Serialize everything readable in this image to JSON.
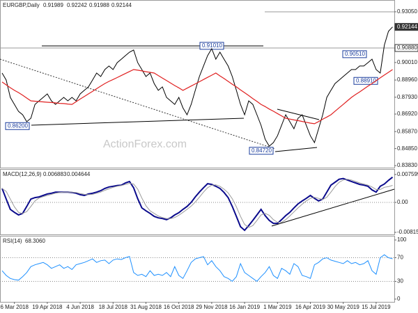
{
  "chart_data": [
    {
      "type": "line",
      "title": "EURGBP,Daily",
      "header_values": [
        0.91989,
        0.92242,
        0.91988,
        0.92144
      ],
      "watermark": "ActionForex.com",
      "ylim": [
        0.8371,
        0.9359
      ],
      "yticks": [
        {
          "value": 0.9305,
          "label": "0.93050"
        },
        {
          "value": 0.92144,
          "label": "0.92144",
          "boxed": true
        },
        {
          "value": 0.9088,
          "label": "0.90880",
          "boxed": true
        },
        {
          "value": 0.9001,
          "label": "0.90010"
        },
        {
          "value": 0.8896,
          "label": "0.88960"
        },
        {
          "value": 0.8793,
          "label": "0.87930"
        },
        {
          "value": 0.8692,
          "label": "0.86920"
        },
        {
          "value": 0.8587,
          "label": "0.85870"
        },
        {
          "value": 0.8485,
          "label": "0.84850"
        },
        {
          "value": 0.8383,
          "label": "0.83830"
        }
      ],
      "annotations": [
        {
          "value": 0.9101,
          "label": "0.91010"
        },
        {
          "value": 0.9051,
          "label": "0.90510"
        },
        {
          "value": 0.8891,
          "label": "0.88910"
        },
        {
          "value": 0.862,
          "label": "0.86200"
        },
        {
          "value": 0.8472,
          "label": "0.84720"
        }
      ],
      "series": [
        {
          "color": "#000000",
          "values": [
            0.8938,
            0.8896,
            0.8792,
            0.875,
            0.8708,
            0.8688,
            0.8646,
            0.8667,
            0.875,
            0.8771,
            0.8792,
            0.8813,
            0.8771,
            0.875,
            0.8771,
            0.8792,
            0.8771,
            0.8792,
            0.8771,
            0.8813,
            0.8834,
            0.8855,
            0.8896,
            0.8938,
            0.8917,
            0.8959,
            0.898,
            0.8959,
            0.9,
            0.9021,
            0.9042,
            0.9063,
            0.9076,
            0.9,
            0.8959,
            0.8917,
            0.8938,
            0.8875,
            0.8834,
            0.8855,
            0.8792,
            0.8771,
            0.875,
            0.8792,
            0.8729,
            0.8688,
            0.875,
            0.8834,
            0.8917,
            0.898,
            0.9042,
            0.9084,
            0.9021,
            0.9063,
            0.9021,
            0.898,
            0.8917,
            0.8834,
            0.875,
            0.8688,
            0.8771,
            0.875,
            0.8688,
            0.8625,
            0.8541,
            0.85,
            0.8521,
            0.8562,
            0.8625,
            0.8688,
            0.8646,
            0.8604,
            0.8667,
            0.8688,
            0.8625,
            0.8562,
            0.8521,
            0.8604,
            0.8688,
            0.8792,
            0.8834,
            0.8875,
            0.8896,
            0.8917,
            0.8938,
            0.8959,
            0.8959,
            0.898,
            0.898,
            0.9,
            0.9021,
            0.8959,
            0.8938,
            0.9105,
            0.9188,
            0.92144
          ]
        },
        {
          "color": "#e02020",
          "values": [
            0.8884,
            0.8867,
            0.885,
            0.8834,
            0.8821,
            0.8805,
            0.8788,
            0.8771,
            0.8769,
            0.8767,
            0.8765,
            0.8763,
            0.8761,
            0.8759,
            0.8756,
            0.8755,
            0.8752,
            0.875,
            0.8766,
            0.8782,
            0.8797,
            0.8813,
            0.8828,
            0.8844,
            0.886,
            0.8875,
            0.8888,
            0.8899,
            0.8911,
            0.8923,
            0.8935,
            0.8947,
            0.8959,
            0.8955,
            0.8951,
            0.8946,
            0.8942,
            0.8938,
            0.8923,
            0.8908,
            0.8893,
            0.8878,
            0.8863,
            0.8849,
            0.8834,
            0.8847,
            0.886,
            0.8873,
            0.8886,
            0.8899,
            0.8912,
            0.8925,
            0.8938,
            0.8921,
            0.8905,
            0.8888,
            0.8871,
            0.8855,
            0.8837,
            0.882,
            0.8803,
            0.8785,
            0.8768,
            0.875,
            0.8737,
            0.8722,
            0.8709,
            0.8695,
            0.8681,
            0.8667,
            0.8662,
            0.8657,
            0.8653,
            0.8648,
            0.8643,
            0.8638,
            0.8634,
            0.8647,
            0.8661,
            0.8674,
            0.8688,
            0.8709,
            0.873,
            0.875,
            0.8771,
            0.8792,
            0.8809,
            0.8825,
            0.8842,
            0.8859,
            0.8875,
            0.8892,
            0.8909,
            0.8926,
            0.8942,
            0.8959
          ]
        }
      ]
    },
    {
      "type": "line",
      "title": "MACD(12,26,9)",
      "ylim": [
        -0.0089,
        0.0089
      ],
      "yticks": [
        0.007599,
        {
          "value": 0,
          "label": "0.00"
        },
        -0.00815
      ],
      "series": [
        {
          "color": "#0a0a8c",
          "values": [
            0.0038,
            0.0009,
            -0.0019,
            -0.0027,
            -0.0034,
            -0.003,
            -0.0011,
            0.0009,
            0.0013,
            0.0015,
            0.0019,
            0.0023,
            0.0025,
            0.0028,
            0.0028,
            0.0028,
            0.0028,
            0.0027,
            0.0025,
            0.0021,
            0.0019,
            0.0023,
            0.0025,
            0.0028,
            0.0032,
            0.0038,
            0.0042,
            0.0044,
            0.0046,
            0.0047,
            0.0053,
            0.0057,
            0.004,
            0.001,
            -0.0015,
            -0.0023,
            -0.003,
            -0.0038,
            -0.0042,
            -0.0044,
            -0.0047,
            -0.0042,
            -0.0034,
            -0.0028,
            -0.0019,
            -0.0011,
            0,
            0.0015,
            0.0028,
            0.004,
            0.0051,
            0.0049,
            0.0044,
            0.0038,
            0.0027,
            0.0013,
            -0.0011,
            -0.0038,
            -0.0066,
            -0.0076,
            -0.0063,
            -0.0049,
            -0.0034,
            -0.0019,
            -0.0036,
            -0.0049,
            -0.0057,
            -0.0057,
            -0.0047,
            -0.0036,
            -0.0027,
            -0.0015,
            -0.0004,
            0.0004,
            0.0011,
            0.0019,
            0.0011,
            0.0004,
            0.0009,
            0.0028,
            0.0047,
            0.0055,
            0.0063,
            0.0065,
            0.0061,
            0.0057,
            0.0053,
            0.0049,
            0.0047,
            0.0044,
            0.0034,
            0.0028,
            0.0044,
            0.005,
            0.006,
            0.006883
          ]
        },
        {
          "color": "#9a9a9a",
          "values": [
            0.0038,
            0.003,
            0.0009,
            -0.0012,
            -0.0027,
            -0.003,
            -0.0025,
            -0.0011,
            0.0004,
            0.0012,
            0.0016,
            0.0019,
            0.0022,
            0.0025,
            0.0027,
            0.0028,
            0.0028,
            0.0028,
            0.0027,
            0.0024,
            0.0022,
            0.0021,
            0.0022,
            0.0025,
            0.0028,
            0.0033,
            0.0037,
            0.0041,
            0.0044,
            0.0046,
            0.0049,
            0.0052,
            0.005,
            0.0036,
            0.0012,
            -0.0009,
            -0.0023,
            -0.003,
            -0.0037,
            -0.0041,
            -0.0044,
            -0.0044,
            -0.0041,
            -0.0035,
            -0.0027,
            -0.0019,
            -0.001,
            0.0001,
            0.0014,
            0.0028,
            0.004,
            0.0047,
            0.0048,
            0.0044,
            0.0036,
            0.0026,
            0.001,
            -0.0012,
            -0.0038,
            -0.006,
            -0.0068,
            -0.0063,
            -0.0049,
            -0.0034,
            -0.003,
            -0.0035,
            -0.0047,
            -0.0054,
            -0.0054,
            -0.0047,
            -0.0037,
            -0.0026,
            -0.0015,
            -0.0005,
            0.0004,
            0.0011,
            0.0014,
            0.0011,
            0.0008,
            0.0014,
            0.0028,
            0.0043,
            0.0055,
            0.0061,
            0.0063,
            0.0061,
            0.0057,
            0.0053,
            0.005,
            0.0047,
            0.0042,
            0.0035,
            0.0035,
            0.0041,
            0.0043,
            0.004644
          ]
        }
      ]
    },
    {
      "type": "line",
      "title": "RSI(14)",
      "current_label": "68.3060",
      "ylim": [
        -4.7,
        105.9
      ],
      "yticks": [
        100,
        70,
        30,
        0
      ],
      "categories": [
        null,
        null,
        null,
        "6 Mar 2018",
        null,
        null,
        null,
        null,
        null,
        null,
        null,
        "19 Apr 2018",
        null,
        null,
        null,
        null,
        null,
        null,
        null,
        "4 Jun 2018",
        null,
        null,
        null,
        null,
        null,
        null,
        null,
        "18 Jul 2018",
        null,
        null,
        null,
        null,
        null,
        null,
        null,
        "31 Aug 2018",
        null,
        null,
        null,
        null,
        null,
        null,
        null,
        "16 Oct 2018",
        null,
        null,
        null,
        null,
        null,
        null,
        null,
        "29 Nov 2018",
        null,
        null,
        null,
        null,
        null,
        null,
        null,
        "16 Jan 2019",
        null,
        null,
        null,
        null,
        null,
        null,
        null,
        "1 Mar 2019",
        null,
        null,
        null,
        null,
        null,
        null,
        null,
        "16 Apr 2019",
        null,
        null,
        null,
        null,
        null,
        null,
        null,
        "30 May 2019",
        null,
        null,
        null,
        null,
        null,
        null,
        null,
        "15 Jul 2019",
        null,
        null,
        null,
        null
      ],
      "series": [
        {
          "color": "#1e90ff",
          "values": [
            48,
            40,
            35,
            33,
            32,
            38,
            45,
            55,
            58,
            60,
            62,
            58,
            52,
            55,
            58,
            52,
            55,
            50,
            58,
            60,
            62,
            65,
            68,
            62,
            65,
            66,
            60,
            66,
            68,
            67,
            70,
            72,
            45,
            40,
            42,
            38,
            48,
            40,
            42,
            40,
            45,
            38,
            55,
            40,
            35,
            48,
            62,
            68,
            70,
            72,
            58,
            65,
            55,
            48,
            38,
            35,
            30,
            38,
            60,
            45,
            40,
            35,
            30,
            38,
            45,
            55,
            40,
            35,
            52,
            48,
            42,
            60,
            55,
            40,
            38,
            35,
            58,
            62,
            68,
            70,
            66,
            64,
            62,
            60,
            65,
            60,
            62,
            58,
            60,
            65,
            48,
            42,
            70,
            75,
            70,
            68.306
          ]
        }
      ]
    }
  ]
}
